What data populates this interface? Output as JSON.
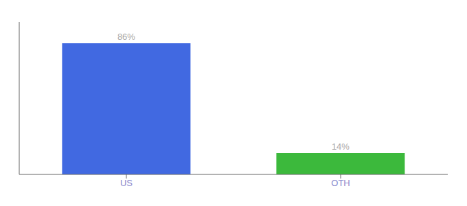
{
  "chart_data": {
    "type": "bar",
    "categories": [
      "US",
      "OTH"
    ],
    "values": [
      86,
      14
    ],
    "colors": [
      "#4169E1",
      "#3CB93C"
    ],
    "value_labels": [
      "86%",
      "14%"
    ],
    "data_labels": true,
    "ylim": [
      0,
      100
    ],
    "yticks": [],
    "tick_labels": "x",
    "grid": false
  }
}
